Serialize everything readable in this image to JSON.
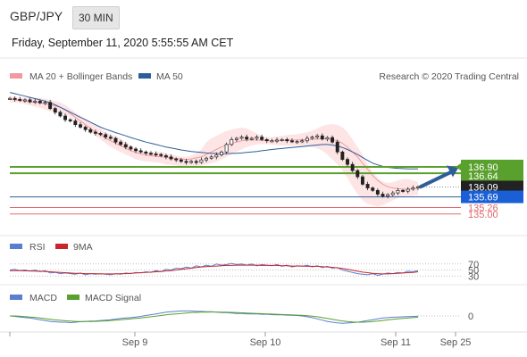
{
  "header": {
    "pair": "GBP/JPY",
    "timeframe": "30 MIN",
    "datetime": "Friday, September 11, 2020 5:55:55 AM CET",
    "credit": "Research © 2020 Trading Central"
  },
  "colors": {
    "bollinger": "#f2999f",
    "bollinger_fill": "#fde0e2",
    "ma50": "#2e5e99",
    "support_resistance": "#5aa02c",
    "price_line": "#2e5e99",
    "price_box": "#1a5fd6",
    "current_box": "#222222",
    "red_level": "#e06b70",
    "arrow": "#2e5e99",
    "rsi": "#5b7fd0",
    "rsi_ma": "#c8262c",
    "macd": "#5b7fd0",
    "macd_signal": "#5aa02c"
  },
  "chart_data": [
    {
      "type": "line",
      "name": "price",
      "legend": [
        {
          "label": "MA 20 + Bollinger Bands",
          "color": "#f2999f",
          "icon": "swatch"
        },
        {
          "label": "MA 50",
          "color": "#2e5e99",
          "icon": "swatch"
        }
      ],
      "x_ticks": [
        "Sep 9",
        "Sep 10",
        "Sep 11",
        "Sep 25"
      ],
      "ylim": [
        134.2,
        140.1
      ],
      "price": [
        139.66,
        139.62,
        139.58,
        139.6,
        139.52,
        139.55,
        139.48,
        139.5,
        139.25,
        139.1,
        138.95,
        138.8,
        138.75,
        138.6,
        138.5,
        138.4,
        138.3,
        138.25,
        138.2,
        138.1,
        138.05,
        137.9,
        137.8,
        137.7,
        137.62,
        137.55,
        137.5,
        137.45,
        137.42,
        137.4,
        137.35,
        137.3,
        137.22,
        137.18,
        137.12,
        137.08,
        137.12,
        137.08,
        137.18,
        137.25,
        137.3,
        137.38,
        137.5,
        137.8,
        138.0,
        138.05,
        138.1,
        138.02,
        138.05,
        138.1,
        138.0,
        137.95,
        137.95,
        137.98,
        138.0,
        137.95,
        137.92,
        137.92,
        137.95,
        138.05,
        138.1,
        138.15,
        138.02,
        138.08,
        137.9,
        137.5,
        137.2,
        137.0,
        136.75,
        136.5,
        136.2,
        136.05,
        135.95,
        135.8,
        135.72,
        135.78,
        135.85,
        135.95,
        135.92,
        136.0,
        136.05,
        136.09
      ],
      "ma20_band": {
        "upper": [
          139.75,
          139.72,
          139.68,
          139.7,
          139.68,
          139.68,
          139.68,
          139.65,
          139.6,
          139.55,
          139.5,
          139.4,
          139.25,
          139.1,
          138.95,
          138.85,
          138.7,
          138.6,
          138.45,
          138.3,
          138.2,
          138.15,
          138.05,
          137.9,
          137.75,
          137.6,
          137.55,
          137.5,
          137.5,
          137.5,
          137.5,
          137.45,
          137.4,
          137.35,
          137.3,
          137.3,
          137.35,
          137.45,
          137.6,
          137.9,
          138.05,
          138.15,
          138.25,
          138.35,
          138.4,
          138.45,
          138.48,
          138.45,
          138.35,
          138.25,
          138.15,
          138.1,
          138.1,
          138.12,
          138.15,
          138.18,
          138.2,
          138.22,
          138.25,
          138.3,
          138.35,
          138.45,
          138.55,
          138.6,
          138.62,
          138.6,
          138.5,
          138.3,
          138.0,
          137.7,
          137.4,
          137.0,
          136.7,
          136.45,
          136.3,
          136.25,
          136.28,
          136.35,
          136.4,
          136.4,
          136.35,
          136.3
        ],
        "middle": [
          139.62,
          139.6,
          139.58,
          139.55,
          139.52,
          139.5,
          139.48,
          139.45,
          139.4,
          139.35,
          139.3,
          139.2,
          139.05,
          138.9,
          138.75,
          138.6,
          138.45,
          138.3,
          138.2,
          138.05,
          137.95,
          137.85,
          137.75,
          137.65,
          137.55,
          137.48,
          137.42,
          137.38,
          137.35,
          137.32,
          137.3,
          137.28,
          137.26,
          137.24,
          137.22,
          137.2,
          137.22,
          137.26,
          137.3,
          137.4,
          137.5,
          137.6,
          137.7,
          137.78,
          137.85,
          137.9,
          137.95,
          137.98,
          137.98,
          137.98,
          137.97,
          137.96,
          137.95,
          137.95,
          137.96,
          137.97,
          137.98,
          137.98,
          137.99,
          138.0,
          138.01,
          138.02,
          138.03,
          138.02,
          138.0,
          137.95,
          137.85,
          137.7,
          137.5,
          137.3,
          137.05,
          136.8,
          136.55,
          136.35,
          136.2,
          136.1,
          136.05,
          136.02,
          136.0,
          136.0,
          136.02,
          136.05
        ],
        "lower": [
          139.5,
          139.5,
          139.48,
          139.42,
          139.38,
          139.32,
          139.28,
          139.2,
          139.15,
          139.1,
          139.05,
          139.0,
          138.9,
          138.75,
          138.6,
          138.45,
          138.3,
          138.15,
          138.0,
          137.85,
          137.7,
          137.6,
          137.5,
          137.4,
          137.3,
          137.2,
          137.15,
          137.12,
          137.1,
          137.08,
          137.05,
          137.0,
          136.98,
          136.95,
          136.92,
          136.9,
          136.9,
          136.92,
          136.95,
          137.0,
          137.05,
          137.1,
          137.2,
          137.3,
          137.4,
          137.5,
          137.6,
          137.7,
          137.75,
          137.8,
          137.82,
          137.82,
          137.8,
          137.78,
          137.76,
          137.75,
          137.75,
          137.74,
          137.73,
          137.72,
          137.7,
          137.65,
          137.55,
          137.4,
          137.2,
          137.0,
          136.75,
          136.45,
          136.1,
          135.8,
          135.55,
          135.4,
          135.35,
          135.3,
          135.35,
          135.45,
          135.55,
          135.65,
          135.7,
          135.72,
          135.74,
          135.76
        ]
      },
      "ma50": [
        139.9,
        139.85,
        139.8,
        139.75,
        139.7,
        139.65,
        139.6,
        139.55,
        139.48,
        139.4,
        139.3,
        139.2,
        139.1,
        139.0,
        138.9,
        138.8,
        138.7,
        138.6,
        138.5,
        138.42,
        138.35,
        138.28,
        138.22,
        138.15,
        138.08,
        138.02,
        137.96,
        137.9,
        137.85,
        137.8,
        137.75,
        137.7,
        137.66,
        137.62,
        137.58,
        137.55,
        137.52,
        137.5,
        137.48,
        137.46,
        137.45,
        137.44,
        137.43,
        137.43,
        137.44,
        137.45,
        137.46,
        137.48,
        137.5,
        137.52,
        137.55,
        137.57,
        137.6,
        137.62,
        137.64,
        137.66,
        137.68,
        137.7,
        137.72,
        137.74,
        137.76,
        137.78,
        137.8,
        137.8,
        137.78,
        137.74,
        137.68,
        137.6,
        137.5,
        137.4,
        137.28,
        137.16,
        137.05,
        136.98,
        136.92,
        136.88,
        136.86,
        136.84,
        136.83,
        136.82,
        136.82,
        136.82
      ],
      "levels": [
        {
          "value": 136.9,
          "label": "136.90",
          "style": "green-thick"
        },
        {
          "value": 136.64,
          "label": "136.64",
          "style": "green-thick"
        },
        {
          "value": 136.09,
          "label": "136.09",
          "style": "current"
        },
        {
          "value": 135.69,
          "label": "135.69",
          "style": "blue-line"
        },
        {
          "value": 135.26,
          "label": "135.26",
          "style": "red"
        },
        {
          "value": 135.0,
          "label": "135.00",
          "style": "red"
        }
      ],
      "forecast_arrow": {
        "from": 136.1,
        "to": 136.85,
        "direction": "up"
      }
    },
    {
      "type": "line",
      "name": "rsi",
      "legend": [
        {
          "label": "RSI",
          "color": "#5b7fd0",
          "icon": "swatch"
        },
        {
          "label": "9MA",
          "color": "#c8262c",
          "icon": "swatch"
        }
      ],
      "levels": [
        70,
        50,
        30
      ],
      "ylim": [
        10,
        90
      ],
      "rsi": [
        50,
        52,
        48,
        50,
        46,
        50,
        44,
        48,
        40,
        42,
        38,
        40,
        38,
        36,
        40,
        34,
        38,
        36,
        38,
        36,
        34,
        38,
        36,
        40,
        38,
        42,
        40,
        44,
        42,
        48,
        44,
        52,
        50,
        56,
        54,
        60,
        56,
        64,
        60,
        66,
        62,
        70,
        66,
        68,
        72,
        68,
        70,
        66,
        70,
        64,
        68,
        66,
        64,
        68,
        62,
        66,
        60,
        64,
        62,
        66,
        60,
        64,
        58,
        62,
        56,
        58,
        50,
        46,
        42,
        38,
        36,
        34,
        38,
        32,
        36,
        40,
        38,
        42,
        40,
        46,
        44,
        48
      ],
      "rsi_ma": [
        48,
        48,
        48,
        47,
        47,
        46,
        46,
        45,
        44,
        43,
        42,
        41,
        40,
        39,
        39,
        38,
        38,
        38,
        37,
        37,
        37,
        37,
        38,
        38,
        39,
        40,
        41,
        42,
        43,
        44,
        45,
        47,
        48,
        50,
        52,
        54,
        56,
        58,
        60,
        61,
        62,
        63,
        64,
        65,
        65,
        66,
        66,
        66,
        66,
        66,
        65,
        65,
        65,
        65,
        64,
        64,
        63,
        63,
        63,
        62,
        62,
        62,
        61,
        60,
        59,
        57,
        55,
        52,
        49,
        46,
        43,
        41,
        39,
        38,
        37,
        37,
        38,
        39,
        40,
        41,
        42,
        44
      ]
    },
    {
      "type": "line",
      "name": "macd",
      "legend": [
        {
          "label": "MACD",
          "color": "#5b7fd0",
          "icon": "swatch"
        },
        {
          "label": "MACD Signal",
          "color": "#5aa02c",
          "icon": "swatch"
        }
      ],
      "zero_label": "0",
      "ylim": [
        -0.6,
        0.6
      ],
      "macd": [
        0.0,
        -0.02,
        -0.05,
        -0.08,
        -0.1,
        -0.14,
        -0.18,
        -0.22,
        -0.26,
        -0.28,
        -0.3,
        -0.3,
        -0.32,
        -0.3,
        -0.28,
        -0.26,
        -0.25,
        -0.24,
        -0.22,
        -0.2,
        -0.18,
        -0.15,
        -0.12,
        -0.1,
        -0.08,
        -0.05,
        -0.02,
        0.02,
        0.06,
        0.1,
        0.14,
        0.18,
        0.2,
        0.22,
        0.24,
        0.24,
        0.24,
        0.22,
        0.22,
        0.2,
        0.2,
        0.18,
        0.16,
        0.16,
        0.14,
        0.12,
        0.12,
        0.1,
        0.1,
        0.1,
        0.08,
        0.08,
        0.06,
        0.05,
        0.05,
        0.04,
        0.03,
        0.02,
        0.0,
        -0.04,
        -0.08,
        -0.14,
        -0.2,
        -0.26,
        -0.3,
        -0.33,
        -0.35,
        -0.34,
        -0.32,
        -0.3,
        -0.26,
        -0.22,
        -0.18,
        -0.14,
        -0.1,
        -0.08,
        -0.06,
        -0.05,
        -0.04,
        -0.03,
        -0.02,
        -0.01
      ],
      "signal": [
        0.0,
        0.0,
        -0.01,
        -0.03,
        -0.05,
        -0.07,
        -0.1,
        -0.13,
        -0.16,
        -0.19,
        -0.21,
        -0.23,
        -0.25,
        -0.26,
        -0.27,
        -0.27,
        -0.27,
        -0.26,
        -0.25,
        -0.24,
        -0.22,
        -0.2,
        -0.18,
        -0.16,
        -0.14,
        -0.12,
        -0.1,
        -0.07,
        -0.04,
        -0.01,
        0.02,
        0.05,
        0.08,
        0.1,
        0.12,
        0.14,
        0.16,
        0.17,
        0.18,
        0.18,
        0.19,
        0.19,
        0.18,
        0.18,
        0.17,
        0.16,
        0.15,
        0.14,
        0.13,
        0.12,
        0.11,
        0.1,
        0.09,
        0.08,
        0.07,
        0.06,
        0.05,
        0.04,
        0.03,
        0.01,
        -0.01,
        -0.04,
        -0.08,
        -0.12,
        -0.16,
        -0.2,
        -0.24,
        -0.27,
        -0.29,
        -0.3,
        -0.3,
        -0.29,
        -0.27,
        -0.25,
        -0.22,
        -0.19,
        -0.16,
        -0.14,
        -0.12,
        -0.1,
        -0.08,
        -0.06
      ]
    }
  ]
}
